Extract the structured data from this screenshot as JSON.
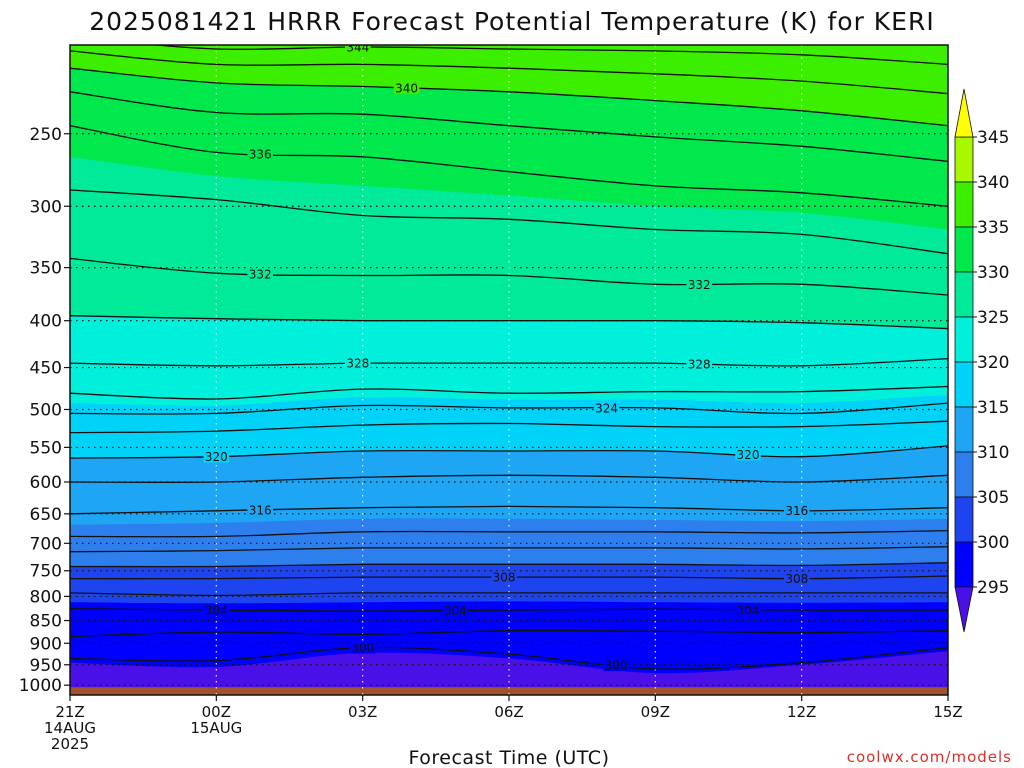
{
  "title": "2025081421 HRRR Forecast Potential Temperature (K) for KERI",
  "xlabel": "Forecast Time (UTC)",
  "credit": "coolwx.com/models",
  "x_ticks": [
    {
      "time": 0,
      "lines": [
        "21Z",
        "14AUG",
        "2025"
      ]
    },
    {
      "time": 3,
      "lines": [
        "00Z",
        "15AUG"
      ]
    },
    {
      "time": 6,
      "lines": [
        "03Z"
      ]
    },
    {
      "time": 9,
      "lines": [
        "06Z"
      ]
    },
    {
      "time": 12,
      "lines": [
        "09Z"
      ]
    },
    {
      "time": 15,
      "lines": [
        "12Z"
      ]
    },
    {
      "time": 18,
      "lines": [
        "15Z"
      ]
    }
  ],
  "y_ticks": [
    250,
    300,
    350,
    400,
    450,
    500,
    550,
    600,
    650,
    700,
    750,
    800,
    850,
    900,
    950,
    1000
  ],
  "colorbar": {
    "ticks": [
      295,
      300,
      305,
      310,
      315,
      320,
      325,
      330,
      335,
      340,
      345
    ],
    "colors": [
      "#4b0fe8",
      "#0000ff",
      "#1e44f0",
      "#2e7fee",
      "#1ea6f5",
      "#00d2f8",
      "#00f0dc",
      "#00ea9a",
      "#00e84c",
      "#3cef00",
      "#a8f800",
      "#ffff00"
    ]
  },
  "chart_data": {
    "type": "contour",
    "title": "2025081421 HRRR Forecast Potential Temperature (K) for KERI",
    "xlabel": "Forecast Time (UTC)",
    "ylabel": "",
    "x_range_hours": [
      0,
      18
    ],
    "y_range_hpa": [
      1025,
      200
    ],
    "y_scale": "log",
    "grid": true,
    "fill_interval_K": 5,
    "contour_interval_K": 2,
    "terrain_below_hpa": 1005,
    "x": [
      0,
      3,
      6,
      9,
      12,
      15,
      18
    ],
    "contour_lines": [
      {
        "theta": 300,
        "p": [
          935,
          940,
          910,
          925,
          960,
          945,
          910
        ]
      },
      {
        "theta": 302,
        "p": [
          885,
          875,
          880,
          872,
          873,
          876,
          872
        ]
      },
      {
        "theta": 304,
        "p": [
          825,
          828,
          830,
          828,
          826,
          828,
          828
        ]
      },
      {
        "theta": 306,
        "p": [
          793,
          798,
          793,
          793,
          793,
          793,
          793
        ]
      },
      {
        "theta": 308,
        "p": [
          765,
          765,
          762,
          762,
          762,
          765,
          760
        ]
      },
      {
        "theta": 310,
        "p": [
          742,
          742,
          738,
          738,
          738,
          740,
          735
        ]
      },
      {
        "theta": 312,
        "p": [
          715,
          713,
          708,
          708,
          708,
          710,
          706
        ]
      },
      {
        "theta": 314,
        "p": [
          688,
          688,
          680,
          680,
          680,
          682,
          678
        ]
      },
      {
        "theta": 316,
        "p": [
          650,
          645,
          640,
          638,
          640,
          645,
          640
        ]
      },
      {
        "theta": 318,
        "p": [
          600,
          600,
          593,
          590,
          593,
          600,
          590
        ]
      },
      {
        "theta": 320,
        "p": [
          565,
          563,
          555,
          555,
          555,
          563,
          548
        ]
      },
      {
        "theta": 322,
        "p": [
          530,
          528,
          520,
          518,
          522,
          522,
          515
        ]
      },
      {
        "theta": 324,
        "p": [
          505,
          505,
          495,
          498,
          498,
          505,
          492
        ]
      },
      {
        "theta": 326,
        "p": [
          480,
          487,
          475,
          480,
          478,
          478,
          472
        ]
      },
      {
        "theta": 328,
        "p": [
          445,
          448,
          445,
          445,
          445,
          448,
          440
        ]
      },
      {
        "theta": 330,
        "p": [
          395,
          398,
          400,
          400,
          400,
          402,
          408
        ]
      },
      {
        "theta": 332,
        "p": [
          342,
          355,
          357,
          357,
          365,
          365,
          375
        ]
      },
      {
        "theta": 334,
        "p": [
          288,
          295,
          307,
          310,
          318,
          322,
          338
        ]
      },
      {
        "theta": 336,
        "p": [
          245,
          262,
          265,
          275,
          285,
          290,
          300
        ]
      },
      {
        "theta": 338,
        "p": [
          225,
          237,
          238,
          245,
          252,
          258,
          268
        ]
      },
      {
        "theta": 340,
        "p": [
          212,
          220,
          222,
          225,
          230,
          236,
          245
        ]
      },
      {
        "theta": 342,
        "p": [
          203,
          210,
          210,
          212,
          215,
          219,
          226
        ]
      },
      {
        "theta": 344,
        "p": [
          196,
          202,
          201,
          202,
          203,
          205,
          210
        ]
      }
    ],
    "fill_boundaries": [
      {
        "theta": 300,
        "p": [
          945,
          955,
          922,
          935,
          970,
          950,
          918
        ]
      },
      {
        "theta": 305,
        "p": [
          812,
          814,
          812,
          810,
          812,
          813,
          812
        ]
      },
      {
        "theta": 310,
        "p": [
          742,
          742,
          738,
          738,
          738,
          740,
          735
        ]
      },
      {
        "theta": 315,
        "p": [
          668,
          665,
          658,
          658,
          660,
          662,
          658
        ]
      },
      {
        "theta": 320,
        "p": [
          565,
          563,
          555,
          555,
          555,
          563,
          548
        ]
      },
      {
        "theta": 325,
        "p": [
          492,
          495,
          485,
          488,
          488,
          492,
          482
        ]
      },
      {
        "theta": 330,
        "p": [
          395,
          398,
          400,
          400,
          400,
          402,
          408
        ]
      },
      {
        "theta": 335,
        "p": [
          265,
          278,
          285,
          292,
          300,
          305,
          318
        ]
      },
      {
        "theta": 340,
        "p": [
          212,
          220,
          222,
          225,
          230,
          236,
          245
        ]
      },
      {
        "theta": 345,
        "p": [
          192,
          198,
          197,
          197,
          197,
          198,
          200
        ]
      }
    ],
    "contour_labels": [
      {
        "text": "344",
        "time": 5.9,
        "theta": 344
      },
      {
        "text": "340",
        "time": 6.9,
        "theta": 340
      },
      {
        "text": "336",
        "time": 3.9,
        "theta": 336
      },
      {
        "text": "332",
        "time": 3.9,
        "theta": 332
      },
      {
        "text": "332",
        "time": 12.9,
        "theta": 332
      },
      {
        "text": "328",
        "time": 5.9,
        "theta": 328
      },
      {
        "text": "328",
        "time": 12.9,
        "theta": 328
      },
      {
        "text": "324",
        "time": 11.0,
        "theta": 324
      },
      {
        "text": "320",
        "time": 3.0,
        "theta": 320
      },
      {
        "text": "320",
        "time": 13.9,
        "theta": 320
      },
      {
        "text": "316",
        "time": 3.9,
        "theta": 316
      },
      {
        "text": "316",
        "time": 14.9,
        "theta": 316
      },
      {
        "text": "308",
        "time": 8.9,
        "theta": 308
      },
      {
        "text": "308",
        "time": 14.9,
        "theta": 308
      },
      {
        "text": "304",
        "time": 3.0,
        "theta": 304
      },
      {
        "text": "304",
        "time": 7.9,
        "theta": 304
      },
      {
        "text": "304",
        "time": 13.9,
        "theta": 304
      },
      {
        "text": "300",
        "time": 6.0,
        "theta": 300
      },
      {
        "text": "300",
        "time": 11.2,
        "theta": 300
      }
    ]
  }
}
